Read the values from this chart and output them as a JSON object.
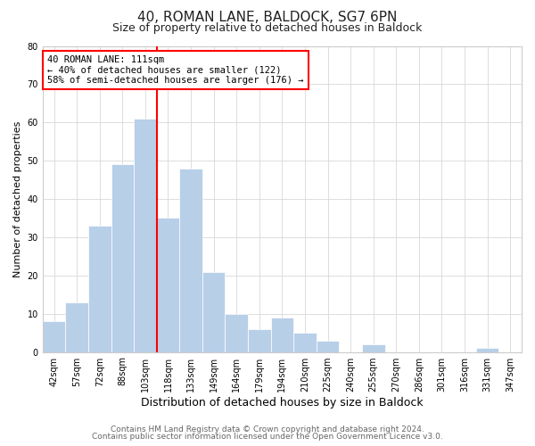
{
  "title": "40, ROMAN LANE, BALDOCK, SG7 6PN",
  "subtitle": "Size of property relative to detached houses in Baldock",
  "xlabel": "Distribution of detached houses by size in Baldock",
  "ylabel": "Number of detached properties",
  "bar_labels": [
    "42sqm",
    "57sqm",
    "72sqm",
    "88sqm",
    "103sqm",
    "118sqm",
    "133sqm",
    "149sqm",
    "164sqm",
    "179sqm",
    "194sqm",
    "210sqm",
    "225sqm",
    "240sqm",
    "255sqm",
    "270sqm",
    "286sqm",
    "301sqm",
    "316sqm",
    "331sqm",
    "347sqm"
  ],
  "bar_values": [
    8,
    13,
    33,
    49,
    61,
    35,
    48,
    21,
    10,
    6,
    9,
    5,
    3,
    0,
    2,
    0,
    0,
    0,
    0,
    1,
    0
  ],
  "bar_color": "#b8cfe8",
  "bar_edge_color": "#ffffff",
  "property_line_x": 4.5,
  "property_line_color": "red",
  "annotation_text": "40 ROMAN LANE: 111sqm\n← 40% of detached houses are smaller (122)\n58% of semi-detached houses are larger (176) →",
  "annotation_box_color": "#ffffff",
  "annotation_box_edge_color": "red",
  "ylim": [
    0,
    80
  ],
  "yticks": [
    0,
    10,
    20,
    30,
    40,
    50,
    60,
    70,
    80
  ],
  "grid_color": "#d8d8d8",
  "bg_color": "#ffffff",
  "footer1": "Contains HM Land Registry data © Crown copyright and database right 2024.",
  "footer2": "Contains public sector information licensed under the Open Government Licence v3.0.",
  "title_fontsize": 11,
  "subtitle_fontsize": 9,
  "xlabel_fontsize": 9,
  "ylabel_fontsize": 8,
  "tick_fontsize": 7,
  "footer_fontsize": 6.5
}
